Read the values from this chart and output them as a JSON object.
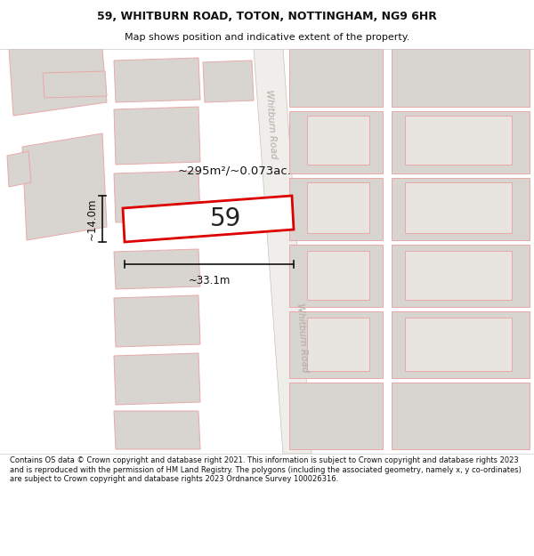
{
  "title_line1": "59, WHITBURN ROAD, TOTON, NOTTINGHAM, NG9 6HR",
  "title_line2": "Map shows position and indicative extent of the property.",
  "footer_text": "Contains OS data © Crown copyright and database right 2021. This information is subject to Crown copyright and database rights 2023 and is reproduced with the permission of HM Land Registry. The polygons (including the associated geometry, namely x, y co-ordinates) are subject to Crown copyright and database rights 2023 Ordnance Survey 100026316.",
  "road_label_top": "Whitburn Road",
  "road_label_bottom": "Whitburn Road",
  "main_plot_label": "59",
  "area_label": "~295m²/~0.073ac.",
  "dim_width": "~33.1m",
  "dim_height": "~14.0m",
  "highlight_color": "#dd0000",
  "map_bg": "#ffffff",
  "bld_fill": "#d8d5d0",
  "bld_edge": "#e8a8a8",
  "road_fill": "#f0eeeb",
  "road_edge": "#d0c8c0",
  "title_bg": "#ffffff",
  "footer_bg": "#ffffff",
  "text_color": "#222222",
  "road_text_color": "#b0aba4"
}
